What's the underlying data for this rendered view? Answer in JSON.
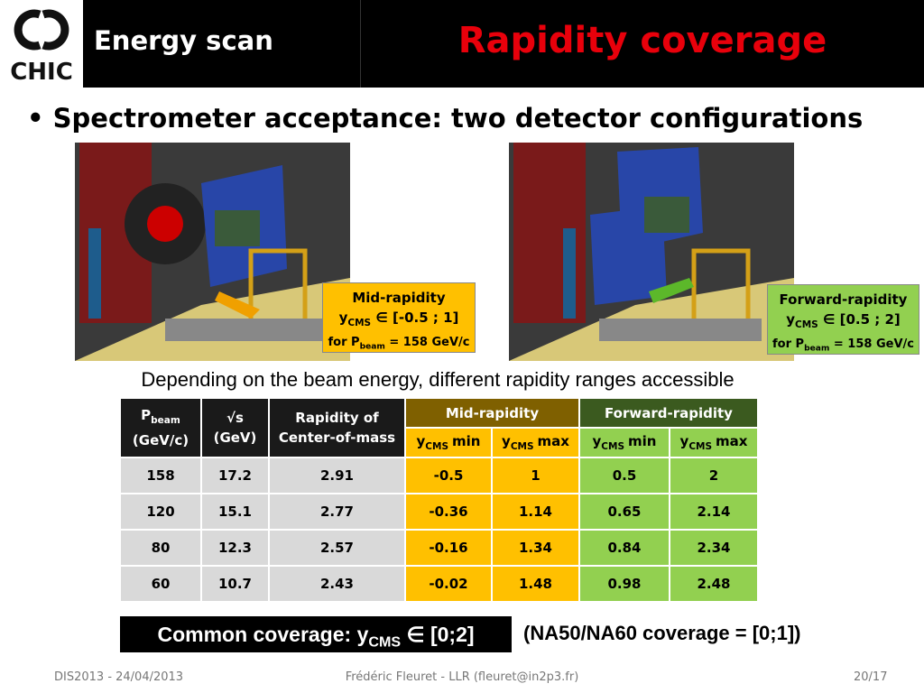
{
  "header": {
    "logo": "CHIC",
    "section": "Energy scan",
    "title": "Rapidity coverage"
  },
  "bullet": "Spectrometer acceptance: two detector configurations",
  "configs": [
    {
      "title": "Mid-rapidity",
      "y": "y",
      "y_sub": "CMS",
      "range": "∈ [-0.5 ; 1]",
      "p": "for P",
      "p_sub": "beam",
      "energy": "= 158 GeV/c"
    },
    {
      "title": "Forward-rapidity",
      "y": "y",
      "y_sub": "CMS",
      "range": "∈ [0.5 ; 2]",
      "p": "for P",
      "p_sub": "beam",
      "energy": "= 158 GeV/c"
    }
  ],
  "caption": "Depending on the beam energy, different rapidity ranges accessible",
  "table": {
    "headers": [
      {
        "main": "P",
        "sub": "beam",
        "line2": "(GeV/c)"
      },
      {
        "main": "√s",
        "line2": "(GeV)"
      },
      {
        "main": "Rapidity of",
        "line2": "Center-of-mass"
      }
    ],
    "groups": [
      "Mid-rapidity",
      "Forward-rapidity"
    ],
    "subheaders": [
      {
        "main": "y",
        "sub": "CMS",
        "rest": "min"
      },
      {
        "main": "y",
        "sub": "CMS",
        "rest": "max"
      },
      {
        "main": "y",
        "sub": "CMS",
        "rest": "min"
      },
      {
        "main": "y",
        "sub": "CMS",
        "rest": "max"
      }
    ],
    "rows": [
      [
        "158",
        "17.2",
        "2.91",
        "-0.5",
        "1",
        "0.5",
        "2"
      ],
      [
        "120",
        "15.1",
        "2.77",
        "-0.36",
        "1.14",
        "0.65",
        "2.14"
      ],
      [
        "80",
        "12.3",
        "2.57",
        "-0.16",
        "1.34",
        "0.84",
        "2.34"
      ],
      [
        "60",
        "10.7",
        "2.43",
        "-0.02",
        "1.48",
        "0.98",
        "2.48"
      ]
    ]
  },
  "common": {
    "text": "Common coverage: y",
    "sub": "CMS",
    "rest": "∈ [0;2]"
  },
  "note": "(NA50/NA60 coverage = [0;1])",
  "footer": {
    "left": "DIS2013 - 24/04/2013",
    "center": "Frédéric Fleuret - LLR (fleuret@in2p3.fr)",
    "right": "20/17"
  }
}
